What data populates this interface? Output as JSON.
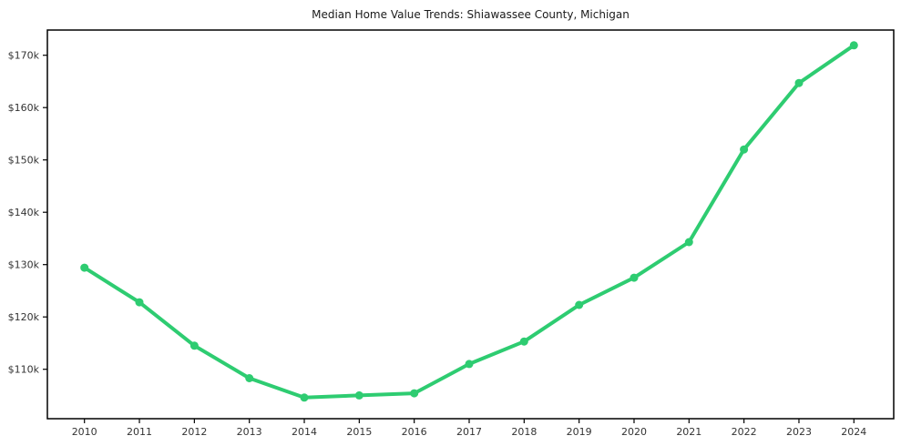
{
  "title": "Median Home Value Trends: Shiawassee County, Michigan",
  "chart_data": {
    "type": "line",
    "title": "Median Home Value Trends: Shiawassee County, Michigan",
    "xlabel": "",
    "ylabel": "",
    "grid": false,
    "legend": "none",
    "marker": "circle",
    "line_color": "#2ecc71",
    "axis_color": "#000000",
    "tick_label_color": "#333333",
    "categories": [
      "2010",
      "2011",
      "2012",
      "2013",
      "2014",
      "2015",
      "2016",
      "2017",
      "2018",
      "2019",
      "2020",
      "2021",
      "2022",
      "2023",
      "2024"
    ],
    "series": [
      {
        "name": "Median Home Value",
        "values_usd": [
          129400,
          122800,
          114500,
          108300,
          104600,
          105000,
          105400,
          111000,
          115300,
          122300,
          127500,
          134300,
          152000,
          164700,
          171900
        ]
      }
    ],
    "y_ticks": [
      {
        "value_usd": 110000,
        "label": "$110k"
      },
      {
        "value_usd": 120000,
        "label": "$120k"
      },
      {
        "value_usd": 130000,
        "label": "$130k"
      },
      {
        "value_usd": 140000,
        "label": "$140k"
      },
      {
        "value_usd": 150000,
        "label": "$150k"
      },
      {
        "value_usd": 160000,
        "label": "$160k"
      },
      {
        "value_usd": 170000,
        "label": "$170k"
      }
    ],
    "ylim_usd": [
      100900,
      174800
    ]
  }
}
